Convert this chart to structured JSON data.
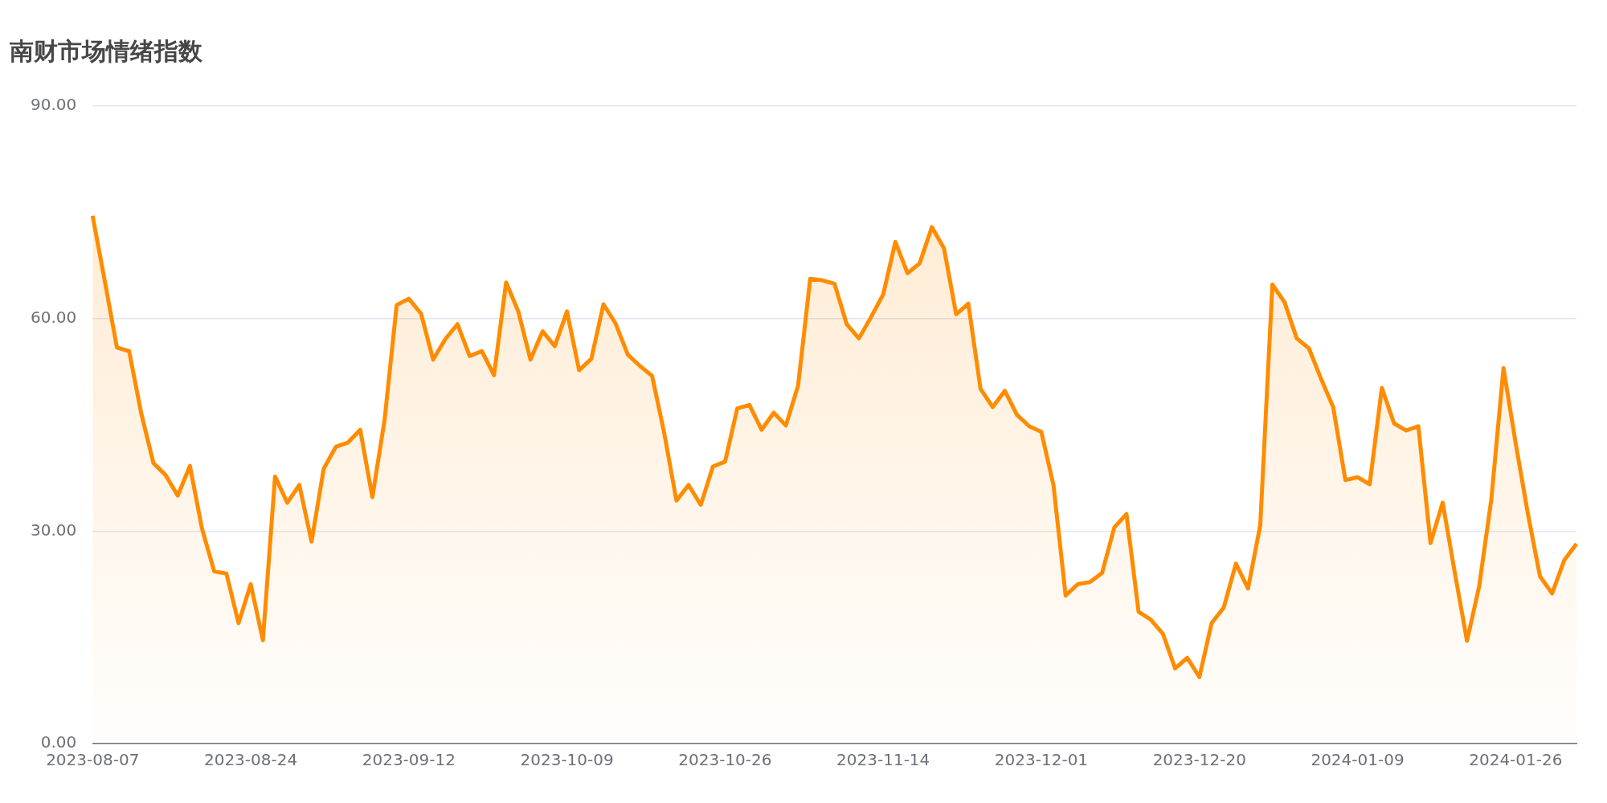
{
  "chart_data": {
    "type": "area",
    "title": "南财市场情绪指数",
    "categories": [
      "2023-08-07",
      null,
      null,
      null,
      null,
      null,
      null,
      null,
      null,
      null,
      null,
      null,
      null,
      "2023-08-24",
      null,
      null,
      null,
      null,
      null,
      null,
      null,
      null,
      null,
      null,
      null,
      null,
      "2023-09-12",
      null,
      null,
      null,
      null,
      null,
      null,
      null,
      null,
      null,
      null,
      null,
      null,
      "2023-10-09",
      null,
      null,
      null,
      null,
      null,
      null,
      null,
      null,
      null,
      null,
      null,
      null,
      "2023-10-26",
      null,
      null,
      null,
      null,
      null,
      null,
      null,
      null,
      null,
      null,
      null,
      null,
      "2023-11-14",
      null,
      null,
      null,
      null,
      null,
      null,
      null,
      null,
      null,
      null,
      null,
      null,
      "2023-12-01",
      null,
      null,
      null,
      null,
      null,
      null,
      null,
      null,
      null,
      null,
      null,
      null,
      "2023-12-20",
      null,
      null,
      null,
      null,
      null,
      null,
      null,
      null,
      null,
      null,
      null,
      null,
      "2024-01-09",
      null,
      null,
      null,
      null,
      null,
      null,
      null,
      null,
      null,
      null,
      null,
      null,
      "2024-01-26",
      null,
      null,
      null,
      null,
      null
    ],
    "series": [
      {
        "color": "#ff8c00",
        "values": [
          74.5,
          65.3,
          55.9,
          55.4,
          46.6,
          39.6,
          37.9,
          35.0,
          39.2,
          30.3,
          24.3,
          24.0,
          17.0,
          22.5,
          14.6,
          37.7,
          34.0,
          36.5,
          28.5,
          38.8,
          41.9,
          42.5,
          44.3,
          34.8,
          45.6,
          61.9,
          62.8,
          60.7,
          54.2,
          57.1,
          59.2,
          54.7,
          55.4,
          52.0,
          65.1,
          61.0,
          54.2,
          58.2,
          56.1,
          61.0,
          52.7,
          54.3,
          62.0,
          59.3,
          54.9,
          53.3,
          51.9,
          43.8,
          34.3,
          36.5,
          33.7,
          39.1,
          39.8,
          47.3,
          47.8,
          44.3,
          46.7,
          44.9,
          50.5,
          65.6,
          65.4,
          64.9,
          59.2,
          57.2,
          60.2,
          63.4,
          70.8,
          66.4,
          67.8,
          72.9,
          69.9,
          60.6,
          62.1,
          50.1,
          47.5,
          49.8,
          46.4,
          44.8,
          44.0,
          36.5,
          20.9,
          22.5,
          22.8,
          24.1,
          30.5,
          32.4,
          18.6,
          17.5,
          15.5,
          10.6,
          12.1,
          9.4,
          17.0,
          19.2,
          25.4,
          21.9,
          30.8,
          64.8,
          62.3,
          57.2,
          55.8,
          51.5,
          47.5,
          37.2,
          37.6,
          36.6,
          50.2,
          45.2,
          44.2,
          44.8,
          28.3,
          34.0,
          24.1,
          14.5,
          22.2,
          34.5,
          53.0,
          42.4,
          32.5,
          23.6,
          21.2,
          25.9,
          28.2
        ]
      }
    ],
    "ylim": [
      0,
      90
    ],
    "yticks": [
      {
        "value": 0,
        "label": "0.00"
      },
      {
        "value": 30,
        "label": "30.00"
      },
      {
        "value": 60,
        "label": "60.00"
      },
      {
        "value": 90,
        "label": "90.00"
      }
    ],
    "grid": "y",
    "marker": "none",
    "line_style": "solid"
  }
}
